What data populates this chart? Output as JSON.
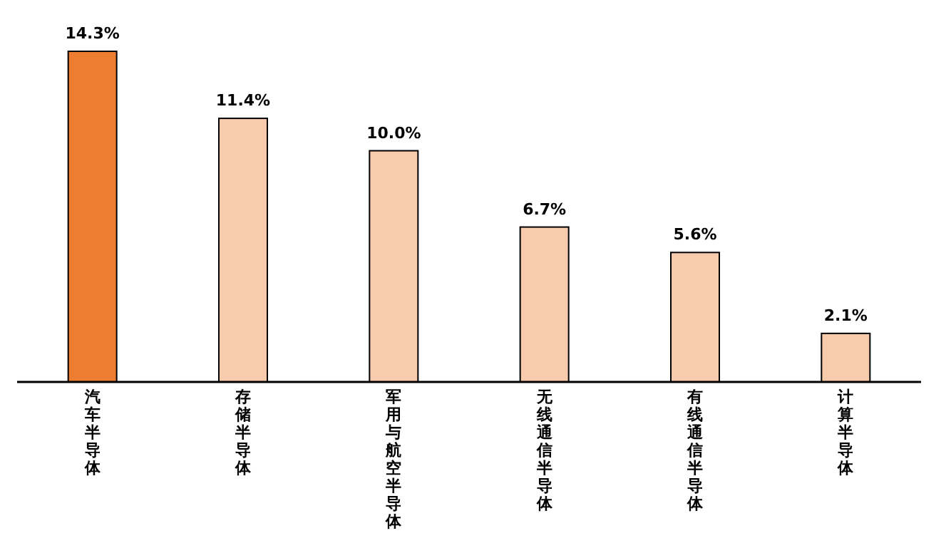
{
  "chart_data": {
    "type": "bar",
    "categories": [
      "汽车半导体",
      "存储半导体",
      "军用与航空半导体",
      "无线通信半导体",
      "有线通信半导体",
      "计算半导体"
    ],
    "values": [
      14.3,
      11.4,
      10.0,
      6.7,
      5.6,
      2.1
    ],
    "colors": [
      "#ed7d31",
      "#f8cbad",
      "#f8cbad",
      "#f8cbad",
      "#f8cbad",
      "#f8cbad"
    ],
    "value_labels": [
      "14.3%",
      "11.4%",
      "10.0%",
      "6.7%",
      "5.6%",
      "2.1%"
    ]
  }
}
